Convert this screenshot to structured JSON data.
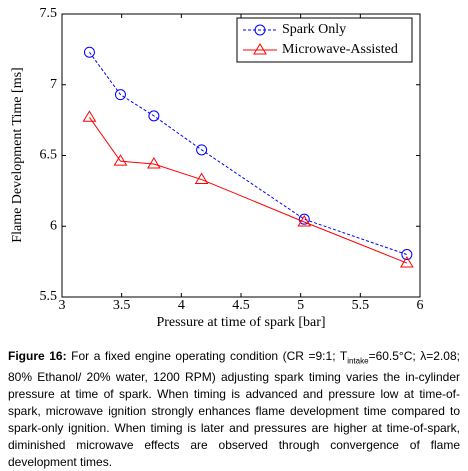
{
  "chart_data": {
    "type": "line",
    "xlabel": "Pressure at time of spark [bar]",
    "ylabel": "Flame Development Time [ms]",
    "x": [
      3.23,
      3.49,
      3.77,
      4.17,
      5.03,
      5.89
    ],
    "series": [
      {
        "name": "Spark Only",
        "color": "#0000ff",
        "linestyle": "dashed",
        "marker": "circle",
        "values": [
          7.23,
          6.93,
          6.78,
          6.54,
          6.05,
          5.8
        ]
      },
      {
        "name": "Microwave-Assisted",
        "color": "#ff0000",
        "linestyle": "solid",
        "marker": "triangle",
        "values": [
          6.77,
          6.46,
          6.44,
          6.33,
          6.03,
          5.74
        ]
      }
    ],
    "xlim": [
      3,
      6
    ],
    "xticks": [
      3,
      3.5,
      4,
      4.5,
      5,
      5.5,
      6
    ],
    "ylim": [
      5.5,
      7.5
    ],
    "yticks": [
      5.5,
      6,
      6.5,
      7,
      7.5
    ],
    "grid": false,
    "legend": "upper right"
  },
  "caption": {
    "label": "Figure 16:",
    "text_before": "For a fixed engine operating condition (CR =9:1; T",
    "subscript": "intake",
    "text_after": "=60.5°C; λ=2.08; 80% Ethanol/ 20% water, 1200 RPM) adjusting spark timing varies the in-cylinder pressure at time of spark. When timing is advanced and pressure low at time-of-spark, microwave ignition strongly enhances flame development time compared to spark-only ignition. When timing is later and pressures are higher at time-of-spark, diminished microwave effects are observed through convergence of flame development times."
  }
}
